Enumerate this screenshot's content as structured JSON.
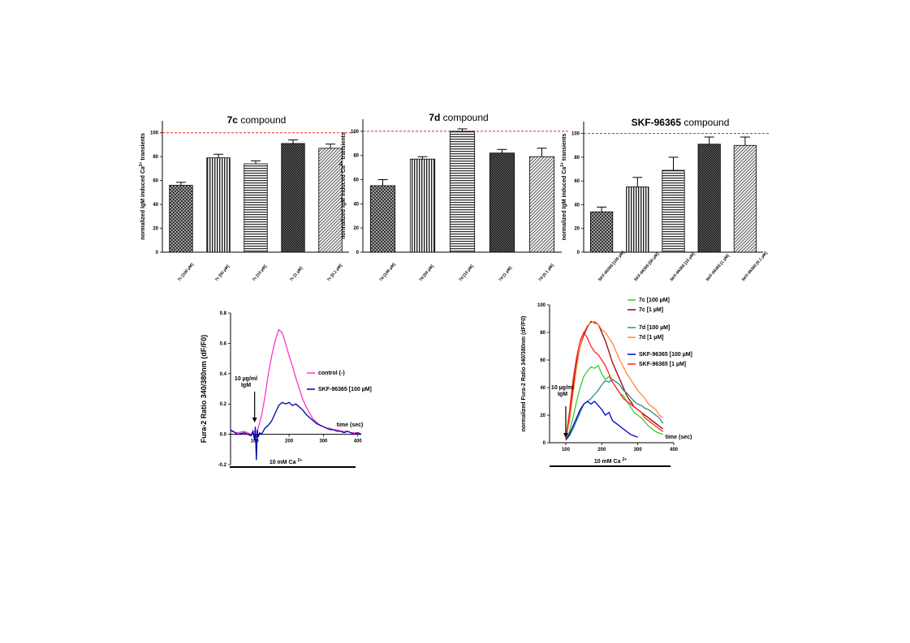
{
  "chart_data": [
    {
      "type": "bar",
      "title_bold": "7c",
      "title_rest": " compound",
      "ylabel_pre": "normalized IgM induced Ca",
      "ylabel_sup": "2+",
      "ylabel_post": " transients",
      "ylim": [
        0,
        110
      ],
      "yticks": [
        "0",
        "20",
        "40",
        "60",
        "80",
        "100"
      ],
      "reference_line": 100,
      "categories": [
        "7c [100 µM]",
        "7c [50 µM]",
        "7c [10 µM]",
        "7c [1 µM]",
        "7c [0.1 µM]"
      ],
      "values": [
        56,
        79,
        74,
        91,
        87
      ],
      "errors": [
        2.5,
        3,
        2.5,
        3,
        3.5
      ]
    },
    {
      "type": "bar",
      "title_bold": "7d",
      "title_rest": " compound",
      "ylabel_pre": "normalized IgM induced Ca",
      "ylabel_sup": "2+",
      "ylabel_post": " transients",
      "ylim": [
        0,
        110
      ],
      "yticks": [
        "0",
        "20",
        "40",
        "60",
        "80",
        "100"
      ],
      "reference_line": 100,
      "categories": [
        "7d [100 µM]",
        "7d [50 µM]",
        "7d [10 µM]",
        "7d [1 µM]",
        "7d [0.1 µM]"
      ],
      "values": [
        55,
        77,
        100,
        82,
        79
      ],
      "errors": [
        5,
        2,
        2,
        3,
        7
      ]
    },
    {
      "type": "bar",
      "title_bold": "SKF-96365",
      "title_rest": " compound",
      "ylabel_pre": "normalized IgM induced Ca",
      "ylabel_sup": "2+",
      "ylabel_post": " transients",
      "ylim": [
        0,
        110
      ],
      "yticks": [
        "0",
        "20",
        "40",
        "60",
        "80",
        "100"
      ],
      "reference_line": 100,
      "categories": [
        "SKF-96365 [100 µM]",
        "SKF-96365 [50 µM]",
        "SKF-96365 [10 µM]",
        "SKF-96365 [1 µM]",
        "SKF-96365 [0.1 µM]"
      ],
      "values": [
        34,
        55,
        69,
        91,
        90
      ],
      "errors": [
        4,
        8,
        11,
        6,
        7
      ]
    },
    {
      "type": "line",
      "ylabel": "Fura-2 Ratio 340/380nm (dF/F0)",
      "xlabel": "time (sec)",
      "xlim": [
        30,
        410
      ],
      "ylim": [
        -0.2,
        0.8
      ],
      "xticks": [
        "100",
        "200",
        "300",
        "400"
      ],
      "yticks": [
        "-0.2",
        "0.0",
        "0.2",
        "0.4",
        "0.6",
        "0.8"
      ],
      "arrow_label_1": "10 µg/ml",
      "arrow_label_2": "IgM",
      "arrow_x": 100,
      "bar_label": "10 mM Ca",
      "bar_label_sup": "2+",
      "series": [
        {
          "name": "control (-)",
          "color": "#ff33cc",
          "x": [
            30,
            50,
            70,
            90,
            100,
            105,
            110,
            120,
            130,
            140,
            150,
            160,
            170,
            180,
            190,
            200,
            210,
            220,
            230,
            240,
            250,
            260,
            270,
            280,
            290,
            300,
            310,
            320,
            330,
            340,
            350,
            360,
            370,
            380,
            390,
            400,
            410
          ],
          "y": [
            0.02,
            0.01,
            0.02,
            0.0,
            0.02,
            -0.02,
            0.04,
            0.12,
            0.25,
            0.4,
            0.52,
            0.62,
            0.69,
            0.67,
            0.6,
            0.52,
            0.45,
            0.37,
            0.3,
            0.23,
            0.18,
            0.14,
            0.1,
            0.08,
            0.06,
            0.05,
            0.04,
            0.04,
            0.03,
            0.03,
            0.02,
            0.02,
            0.02,
            0.01,
            0.01,
            0.01,
            0.0
          ]
        },
        {
          "name": "SKF-96365  [100 µM]",
          "color": "#0000aa",
          "x": [
            30,
            50,
            70,
            90,
            95,
            100,
            102,
            105,
            108,
            110,
            115,
            120,
            130,
            140,
            150,
            160,
            170,
            180,
            190,
            200,
            210,
            220,
            230,
            240,
            250,
            260,
            270,
            280,
            290,
            300,
            310,
            320,
            330,
            340,
            350,
            360,
            370,
            380,
            390,
            400,
            410
          ],
          "y": [
            0.03,
            0.0,
            0.01,
            -0.01,
            0.02,
            -0.04,
            0.05,
            -0.17,
            0.03,
            -0.02,
            0.01,
            0.0,
            0.04,
            0.06,
            0.09,
            0.14,
            0.19,
            0.21,
            0.2,
            0.21,
            0.19,
            0.2,
            0.18,
            0.16,
            0.13,
            0.11,
            0.09,
            0.07,
            0.06,
            0.05,
            0.04,
            0.03,
            0.03,
            0.02,
            0.02,
            0.01,
            0.02,
            0.01,
            0.0,
            0.01,
            0.0
          ]
        }
      ]
    },
    {
      "type": "line",
      "ylabel": "normalized Fura-2 Ratio 340/380nm (dF/F0)",
      "xlabel": "time (sec)",
      "xlim": [
        55,
        400
      ],
      "ylim": [
        0,
        100
      ],
      "xticks": [
        "100",
        "200",
        "300",
        "400"
      ],
      "yticks": [
        "0",
        "20",
        "40",
        "60",
        "80",
        "100"
      ],
      "arrow_label_1": "10 µg/ml",
      "arrow_label_2": "IgM",
      "arrow_x": 100,
      "bar_label": "10 mM Ca",
      "bar_label_sup": "2+",
      "series": [
        {
          "name": "7c  [100 µM]",
          "color": "#33cc33",
          "x": [
            100,
            110,
            120,
            130,
            140,
            150,
            160,
            170,
            180,
            190,
            200,
            210,
            220,
            230,
            240,
            250,
            260,
            270,
            280,
            290,
            300,
            310,
            320,
            330,
            340,
            350,
            360,
            370
          ],
          "y": [
            2,
            8,
            18,
            30,
            40,
            48,
            52,
            55,
            54,
            56,
            50,
            46,
            48,
            44,
            40,
            36,
            34,
            30,
            26,
            22,
            20,
            18,
            15,
            12,
            10,
            8,
            7,
            6
          ]
        },
        {
          "name": "7c  [1 µM]",
          "color": "#990000",
          "x": [
            100,
            110,
            120,
            130,
            140,
            150,
            160,
            170,
            180,
            190,
            200,
            210,
            220,
            230,
            240,
            250,
            260,
            270,
            280,
            290,
            300,
            310,
            320,
            330,
            340,
            350,
            360,
            370
          ],
          "y": [
            3,
            20,
            40,
            58,
            70,
            78,
            84,
            88,
            87,
            86,
            80,
            74,
            66,
            58,
            52,
            46,
            40,
            34,
            30,
            26,
            24,
            22,
            20,
            18,
            16,
            14,
            12,
            10
          ]
        },
        {
          "name": "7d  [100 µM]",
          "color": "#338888",
          "x": [
            100,
            110,
            120,
            130,
            140,
            150,
            160,
            170,
            180,
            190,
            200,
            210,
            220,
            230,
            240,
            250,
            260,
            270,
            280,
            290,
            300,
            310,
            320,
            330,
            340,
            350,
            360,
            370
          ],
          "y": [
            2,
            5,
            10,
            16,
            22,
            28,
            30,
            32,
            35,
            38,
            42,
            45,
            44,
            46,
            44,
            42,
            38,
            36,
            33,
            30,
            28,
            27,
            25,
            24,
            22,
            20,
            18,
            14
          ]
        },
        {
          "name": "7d  [1 µM]",
          "color": "#ff8833",
          "x": [
            100,
            110,
            120,
            130,
            140,
            150,
            160,
            170,
            180,
            190,
            200,
            210,
            220,
            230,
            240,
            250,
            260,
            270,
            280,
            290,
            300,
            310,
            320,
            330,
            340,
            350,
            360,
            370
          ],
          "y": [
            3,
            15,
            35,
            55,
            70,
            80,
            85,
            87,
            88,
            86,
            82,
            80,
            76,
            72,
            66,
            60,
            55,
            50,
            46,
            42,
            38,
            35,
            32,
            28,
            26,
            24,
            20,
            18
          ]
        },
        {
          "name": "SKF-96365  [100 µM]",
          "color": "#0000cc",
          "x": [
            100,
            110,
            120,
            130,
            140,
            150,
            160,
            170,
            180,
            190,
            200,
            210,
            220,
            230,
            240,
            250,
            260,
            270,
            280,
            290,
            300
          ],
          "y": [
            2,
            6,
            12,
            18,
            24,
            28,
            30,
            28,
            30,
            27,
            24,
            20,
            22,
            16,
            14,
            12,
            10,
            8,
            6,
            5,
            4
          ]
        },
        {
          "name": "SKF-96365  [1 µM]",
          "color": "#ff2222",
          "x": [
            100,
            110,
            120,
            130,
            140,
            150,
            160,
            170,
            180,
            190,
            200,
            210,
            220,
            230,
            240,
            250,
            260,
            270,
            280,
            290,
            300,
            310,
            320,
            330,
            340,
            350,
            360,
            370
          ],
          "y": [
            3,
            22,
            45,
            62,
            74,
            80,
            76,
            70,
            66,
            64,
            60,
            56,
            50,
            44,
            40,
            36,
            32,
            30,
            28,
            26,
            24,
            22,
            18,
            16,
            14,
            12,
            10,
            8
          ]
        }
      ]
    }
  ]
}
